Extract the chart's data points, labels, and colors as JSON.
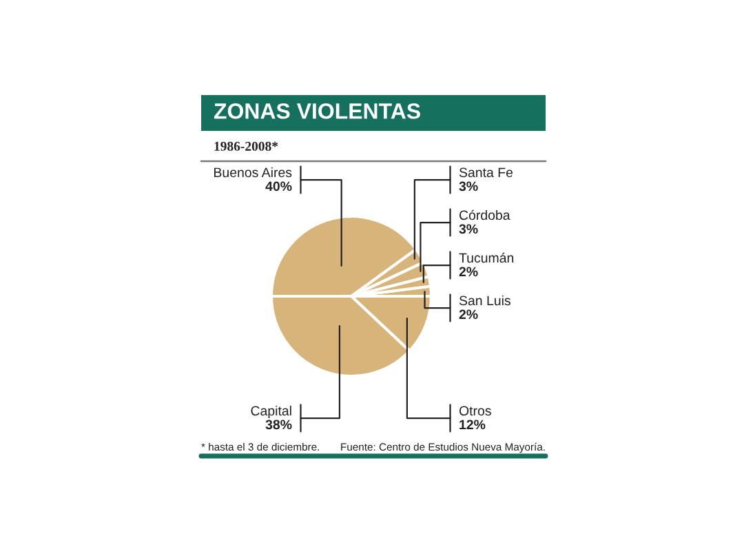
{
  "chart_data": {
    "type": "pie",
    "title": "ZONAS VIOLENTAS",
    "subtitle": "1986-2008*",
    "categories": [
      "Otros",
      "San Luis",
      "Tucumán",
      "Córdoba",
      "Santa Fe",
      "Buenos Aires",
      "Capital"
    ],
    "values": [
      12,
      2,
      2,
      3,
      3,
      40,
      38
    ],
    "value_labels": [
      "12%",
      "2%",
      "2%",
      "3%",
      "3%",
      "40%",
      "38%"
    ],
    "colors": [
      "#d6b47a",
      "#d6b47a",
      "#d6b47a",
      "#d6b47a",
      "#d6b47a",
      "#d6b47a",
      "#d6b47a"
    ],
    "annotations": [
      "* hasta el 3 de diciembre.",
      "Fuente: Centro de Estudios Nueva Mayoría."
    ]
  }
}
